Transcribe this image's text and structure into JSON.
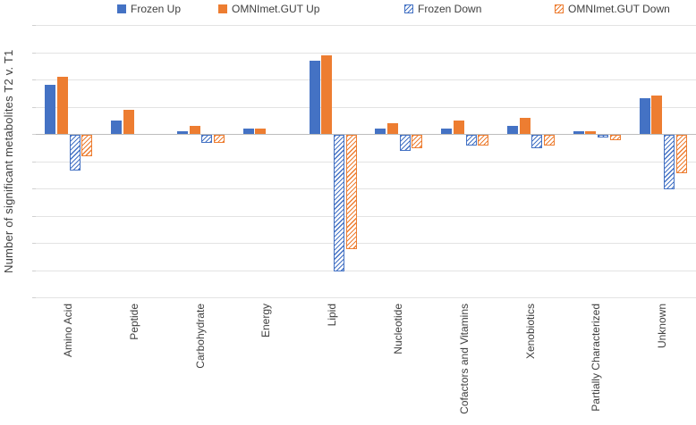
{
  "chart_data": {
    "type": "bar",
    "title": "",
    "y_axis_title": "Number of significant metabolites T2 v. T1",
    "x_axis_title": "",
    "categories": [
      "Amino Acid",
      "Peptide",
      "Carbohydrate",
      "Energy",
      "Lipid",
      "Nucleotide",
      "Cofactors and Vitamins",
      "Xenobiotics",
      "Partially Characterized",
      "Unknown"
    ],
    "series": [
      {
        "name": "Frozen Up",
        "style": "solid",
        "color": "#4472C4",
        "values": [
          18,
          5,
          1,
          2,
          27,
          2,
          2,
          3,
          1,
          13
        ]
      },
      {
        "name": "OMNImet.GUT Up",
        "style": "solid",
        "color": "#ED7D31",
        "values": [
          21,
          9,
          3,
          2,
          29,
          4,
          5,
          6,
          1,
          14
        ]
      },
      {
        "name": "Frozen Down",
        "style": "hatched",
        "color": "#4472C4",
        "values": [
          -13,
          0,
          -3,
          0,
          -50,
          -6,
          -4,
          -5,
          -1,
          -20
        ]
      },
      {
        "name": "OMNImet.GUT Down",
        "style": "hatched",
        "color": "#ED7D31",
        "values": [
          -8,
          0,
          -3,
          0,
          -42,
          -5,
          -4,
          -4,
          -2,
          -14
        ]
      }
    ],
    "ylim": [
      -60,
      40
    ],
    "gridline_step": 10,
    "grid": true,
    "value_axis_labels_visible": false,
    "legend_position": "top",
    "colors": {
      "gridline": "#e3e3e3",
      "zero_axis_line": "#bdbdbd",
      "text": "#404040",
      "background": "#ffffff"
    }
  }
}
